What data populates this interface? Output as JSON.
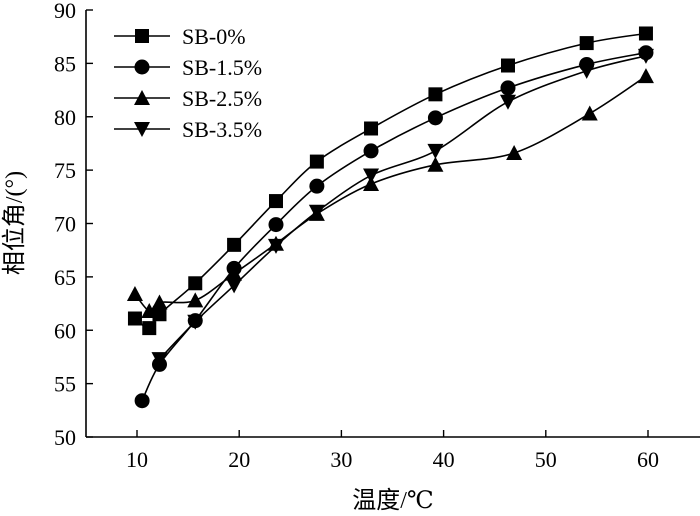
{
  "chart_data": {
    "type": "line",
    "title": "",
    "xlabel": "温度/℃",
    "ylabel": "相位角/(°)",
    "xlim": [
      5,
      65
    ],
    "ylim": [
      50,
      90
    ],
    "xticks": [
      10,
      20,
      30,
      40,
      50,
      60
    ],
    "yticks": [
      50,
      55,
      60,
      65,
      70,
      75,
      80,
      85,
      90
    ],
    "grid": false,
    "legend_position": "top-left",
    "series": [
      {
        "name": "SB-0%",
        "marker": "square",
        "points": [
          [
            9.8,
            61.1
          ],
          [
            11.2,
            60.2
          ],
          [
            12.2,
            61.5
          ],
          [
            15.7,
            64.4
          ],
          [
            19.5,
            68.0
          ],
          [
            23.6,
            72.1
          ],
          [
            27.6,
            75.8
          ],
          [
            32.9,
            78.9
          ],
          [
            39.2,
            82.1
          ],
          [
            46.3,
            84.8
          ],
          [
            54.0,
            86.9
          ],
          [
            59.8,
            87.8
          ]
        ]
      },
      {
        "name": "SB-1.5%",
        "marker": "circle",
        "points": [
          [
            10.5,
            53.4
          ],
          [
            12.2,
            56.8
          ],
          [
            15.7,
            60.9
          ],
          [
            19.5,
            65.8
          ],
          [
            23.6,
            69.9
          ],
          [
            27.6,
            73.5
          ],
          [
            32.9,
            76.8
          ],
          [
            39.2,
            79.9
          ],
          [
            46.3,
            82.7
          ],
          [
            54.0,
            84.9
          ],
          [
            59.8,
            86.0
          ]
        ]
      },
      {
        "name": "SB-2.5%",
        "marker": "triangle-up",
        "points": [
          [
            9.8,
            63.4
          ],
          [
            11.2,
            61.8
          ],
          [
            12.2,
            62.6
          ],
          [
            15.7,
            62.8
          ],
          [
            19.5,
            65.3
          ],
          [
            23.6,
            68.1
          ],
          [
            27.6,
            70.9
          ],
          [
            32.9,
            73.7
          ],
          [
            39.2,
            75.5
          ],
          [
            46.9,
            76.6
          ],
          [
            54.3,
            80.3
          ],
          [
            59.8,
            83.8
          ]
        ]
      },
      {
        "name": "SB-3.5%",
        "marker": "triangle-down",
        "points": [
          [
            12.2,
            57.3
          ],
          [
            15.7,
            60.8
          ],
          [
            19.5,
            64.2
          ],
          [
            23.6,
            67.9
          ],
          [
            27.6,
            71.1
          ],
          [
            32.9,
            74.5
          ],
          [
            39.2,
            76.8
          ],
          [
            46.3,
            81.4
          ],
          [
            54.0,
            84.3
          ],
          [
            59.8,
            85.7
          ]
        ]
      }
    ]
  }
}
